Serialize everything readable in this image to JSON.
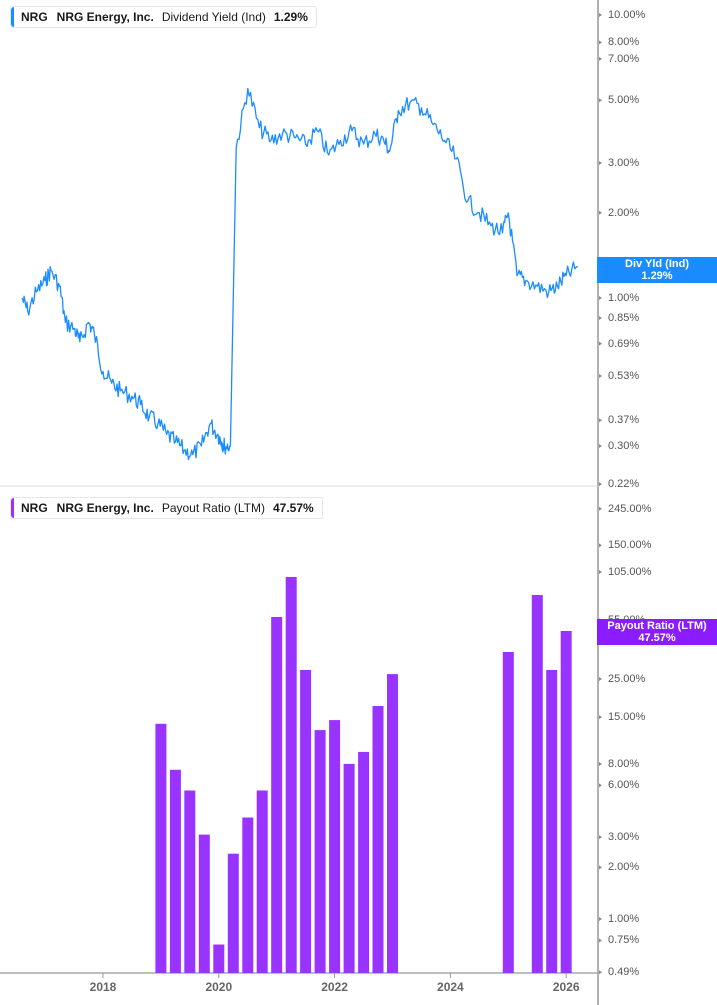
{
  "top_panel": {
    "legend": {
      "ticker": "NRG",
      "company": "NRG Energy, Inc.",
      "metric": "Dividend Yield (Ind)",
      "value": "1.29%",
      "color": "#1a8cff"
    },
    "badge": {
      "line1": "Div Yld (Ind)",
      "line2": "1.29%",
      "color": "#1a8cff"
    },
    "y_ticks": [
      "10.00%",
      "8.00%",
      "7.00%",
      "5.00%",
      "3.00%",
      "2.00%",
      "1.00%",
      "0.85%",
      "0.69%",
      "0.53%",
      "0.37%",
      "0.30%",
      "0.22%"
    ]
  },
  "bottom_panel": {
    "legend": {
      "ticker": "NRG",
      "company": "NRG Energy, Inc.",
      "metric": "Payout Ratio (LTM)",
      "value": "47.57%",
      "color": "#9933ff"
    },
    "badge": {
      "line1": "Payout Ratio (LTM)",
      "line2": "47.57%",
      "color": "#8a1cff"
    },
    "y_ticks": [
      "245.00%",
      "150.00%",
      "105.00%",
      "55.00%",
      "45.00%",
      "25.00%",
      "15.00%",
      "8.00%",
      "6.00%",
      "3.00%",
      "2.00%",
      "1.00%",
      "0.75%",
      "0.49%"
    ]
  },
  "x_axis": {
    "ticks": [
      "2018",
      "2020",
      "2022",
      "2024",
      "2026"
    ]
  },
  "chart_data": [
    {
      "type": "line",
      "title": "NRG NRG Energy, Inc. Dividend Yield (Ind) 1.29%",
      "xlabel": "",
      "ylabel": "Dividend Yield (Ind)",
      "y_scale": "log",
      "ylim": [
        0.22,
        11.5
      ],
      "grid": false,
      "series": [
        {
          "name": "Dividend Yield (Ind)",
          "color": "#1a8cff",
          "x": [
            2016.6,
            2016.7,
            2016.85,
            2017.0,
            2017.1,
            2017.25,
            2017.35,
            2017.5,
            2017.6,
            2017.75,
            2017.85,
            2018.0,
            2018.15,
            2018.3,
            2018.5,
            2018.65,
            2018.8,
            2018.95,
            2019.1,
            2019.25,
            2019.4,
            2019.55,
            2019.7,
            2019.85,
            2019.98,
            2020.05,
            2020.1,
            2020.2,
            2020.3,
            2020.5,
            2020.7,
            2020.9,
            2021.1,
            2021.3,
            2021.5,
            2021.7,
            2021.9,
            2022.1,
            2022.3,
            2022.5,
            2022.7,
            2022.85,
            2022.95,
            2023.1,
            2023.3,
            2023.5,
            2023.7,
            2023.9,
            2024.1,
            2024.3,
            2024.5,
            2024.7,
            2024.9,
            2025.0,
            2025.15,
            2025.3,
            2025.5,
            2025.7,
            2025.85,
            2026.0,
            2026.2
          ],
          "values": [
            1.0,
            0.9,
            1.05,
            1.15,
            1.25,
            1.1,
            0.82,
            0.78,
            0.7,
            0.82,
            0.75,
            0.55,
            0.5,
            0.47,
            0.45,
            0.42,
            0.38,
            0.36,
            0.33,
            0.31,
            0.29,
            0.28,
            0.3,
            0.36,
            0.33,
            0.31,
            0.3,
            0.3,
            3.4,
            5.5,
            4.0,
            3.6,
            3.8,
            3.7,
            3.5,
            3.9,
            3.2,
            3.6,
            3.9,
            3.5,
            3.8,
            3.6,
            3.3,
            4.6,
            4.9,
            4.7,
            4.1,
            3.6,
            3.1,
            2.2,
            2.0,
            1.8,
            1.7,
            2.0,
            1.2,
            1.15,
            1.1,
            1.05,
            1.1,
            1.2,
            1.29
          ]
        }
      ]
    },
    {
      "type": "bar",
      "title": "NRG NRG Energy, Inc. Payout Ratio (LTM) 47.57%",
      "xlabel": "",
      "ylabel": "Payout Ratio (LTM)",
      "y_scale": "log",
      "ylim": [
        0.49,
        245
      ],
      "grid": false,
      "categories": [
        "2019Q1",
        "2019Q2",
        "2019Q3",
        "2019Q4",
        "2020Q1",
        "2020Q2",
        "2020Q3",
        "2020Q4",
        "2021Q1",
        "2021Q2",
        "2021Q3",
        "2021Q4",
        "2022Q1",
        "2022Q2",
        "2022Q3",
        "2022Q4",
        "2023Q1",
        "2025Q1",
        "2025Q2",
        "2025Q3",
        "2025Q4"
      ],
      "x_positions": [
        2019.0,
        2019.25,
        2019.5,
        2019.75,
        2020.0,
        2020.25,
        2020.5,
        2020.75,
        2021.0,
        2021.25,
        2021.5,
        2021.75,
        2022.0,
        2022.25,
        2022.5,
        2022.75,
        2023.0,
        2025.0,
        2025.5,
        2025.75,
        2026.0
      ],
      "series": [
        {
          "name": "Payout Ratio (LTM)",
          "color": "#9933ff",
          "values": [
            13.7,
            7.4,
            5.6,
            3.1,
            0.71,
            2.4,
            3.9,
            5.6,
            57.4,
            98.2,
            28.2,
            12.6,
            14.4,
            8.0,
            9.4,
            17.4,
            26.7,
            35.9,
            77.1,
            28.2,
            47.57
          ]
        }
      ],
      "x_ticks": [
        "2018",
        "2020",
        "2022",
        "2024",
        "2026"
      ]
    }
  ]
}
